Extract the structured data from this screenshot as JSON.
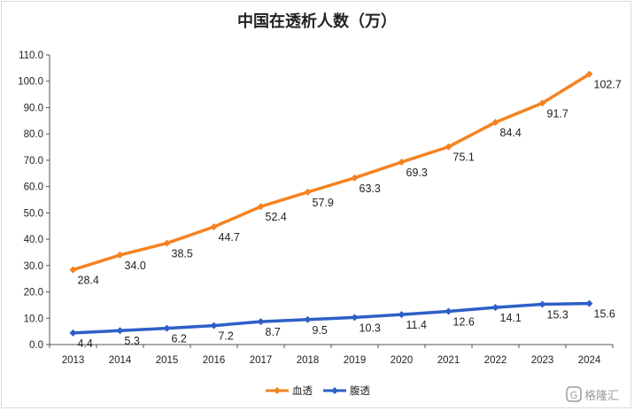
{
  "chart_data": {
    "type": "line",
    "title": "中国在透析人数（万）",
    "xlabel": "",
    "ylabel": "",
    "categories": [
      "2013",
      "2014",
      "2015",
      "2016",
      "2017",
      "2018",
      "2019",
      "2020",
      "2021",
      "2022",
      "2023",
      "2024"
    ],
    "ylim": [
      0,
      110
    ],
    "yticks": [
      "0.0",
      "10.0",
      "20.0",
      "30.0",
      "40.0",
      "50.0",
      "60.0",
      "70.0",
      "80.0",
      "90.0",
      "100.0",
      "110.0"
    ],
    "legend_position": "bottom",
    "grid": false,
    "series": [
      {
        "name": "血透",
        "color": "#f58220",
        "values": [
          28.4,
          34.0,
          38.5,
          44.7,
          52.4,
          57.9,
          63.3,
          69.3,
          75.1,
          84.4,
          91.7,
          102.7
        ],
        "labels": [
          "28.4",
          "34.0",
          "38.5",
          "44.7",
          "52.4",
          "57.9",
          "63.3",
          "69.3",
          "75.1",
          "84.4",
          "91.7",
          "102.7"
        ]
      },
      {
        "name": "腹透",
        "color": "#2e5fc7",
        "values": [
          4.4,
          5.3,
          6.2,
          7.2,
          8.7,
          9.5,
          10.3,
          11.4,
          12.6,
          14.1,
          15.3,
          15.6
        ],
        "labels": [
          "4.4",
          "5.3",
          "6.2",
          "7.2",
          "8.7",
          "9.5",
          "10.3",
          "11.4",
          "12.6",
          "14.1",
          "15.3",
          "15.6"
        ]
      }
    ]
  },
  "watermark": {
    "text": "格隆汇"
  }
}
